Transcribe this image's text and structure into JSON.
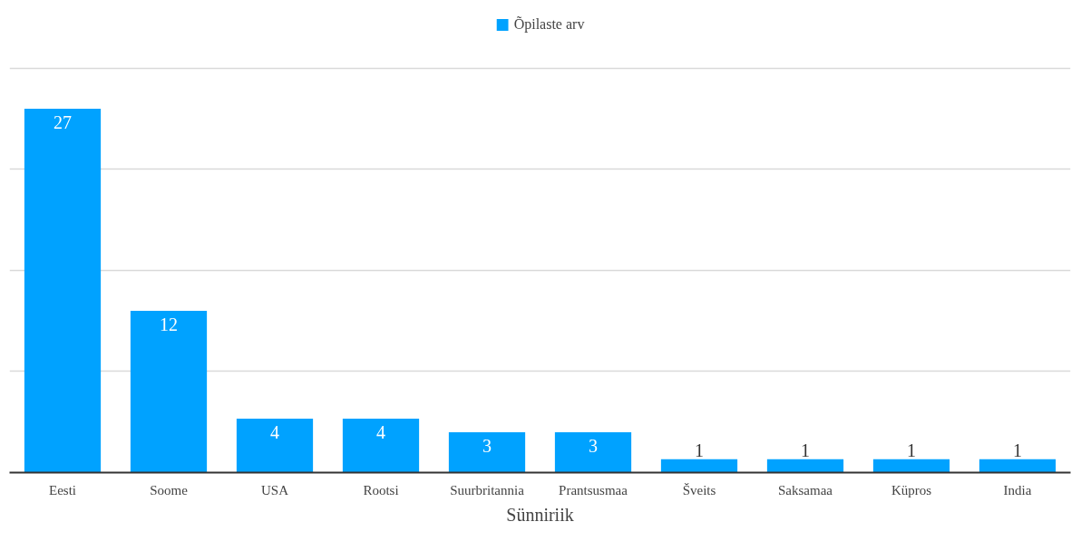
{
  "chart_data": {
    "type": "bar",
    "xlabel": "Sünniriik",
    "categories": [
      "Eesti",
      "Soome",
      "USA",
      "Rootsi",
      "Suurbritannia",
      "Prantsusmaa",
      "Šveits",
      "Saksamaa",
      "Küpros",
      "India"
    ],
    "series": [
      {
        "name": "Õpilaste arv",
        "color": "#00a2ff",
        "values": [
          27,
          12,
          4,
          4,
          3,
          3,
          1,
          1,
          1,
          1
        ]
      }
    ],
    "yticks": [
      {
        "value": 0,
        "label": null
      },
      {
        "value": 7.5,
        "label": null
      },
      {
        "value": 15,
        "label": null
      },
      {
        "value": 22.5,
        "label": null
      },
      {
        "value": 30,
        "label": null
      }
    ],
    "tick_labels": "x",
    "grid": "y",
    "legend": "top",
    "data_labels": true
  }
}
